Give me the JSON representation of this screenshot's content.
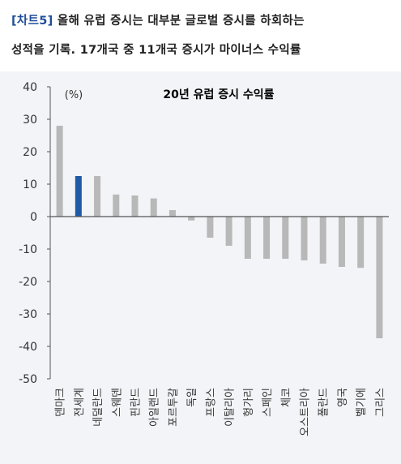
{
  "header": {
    "tag": "[차트5]",
    "line1": "올해 유럽 증시는 대부분 글로벌 증시를 하회하는",
    "line2": "성적을 기록. 17개국 중 11개국 증시가 마이너스 수익률"
  },
  "colors": {
    "default_bar": "#b8b8b8",
    "highlight_bar": "#1f5aa6",
    "background": "#f2f4f7",
    "axis": "#555555",
    "tag": "#1f4e99"
  },
  "chart_data": {
    "type": "bar",
    "title": "20년 유럽 증시 수익률",
    "ylabel": "(%)",
    "xlabel": "",
    "ylim": [
      -50,
      40
    ],
    "yticks": [
      40,
      30,
      20,
      10,
      0,
      -10,
      -20,
      -30,
      -40,
      -50
    ],
    "grid": false,
    "categories": [
      "덴마크",
      "전세계",
      "네덜란드",
      "스웨덴",
      "핀란드",
      "아일랜드",
      "포르투갈",
      "독일",
      "프랑스",
      "이탈리아",
      "헝가리",
      "스페인",
      "체코",
      "오스트리아",
      "폴란드",
      "영국",
      "벨기에",
      "그리스"
    ],
    "values": [
      28,
      12.5,
      12.5,
      6.8,
      6.5,
      5.6,
      2.0,
      -1.2,
      -6.5,
      -9.0,
      -13.0,
      -13.0,
      -13.0,
      -13.5,
      -14.5,
      -15.5,
      -15.8,
      -37.5
    ],
    "highlight_index": 1
  }
}
